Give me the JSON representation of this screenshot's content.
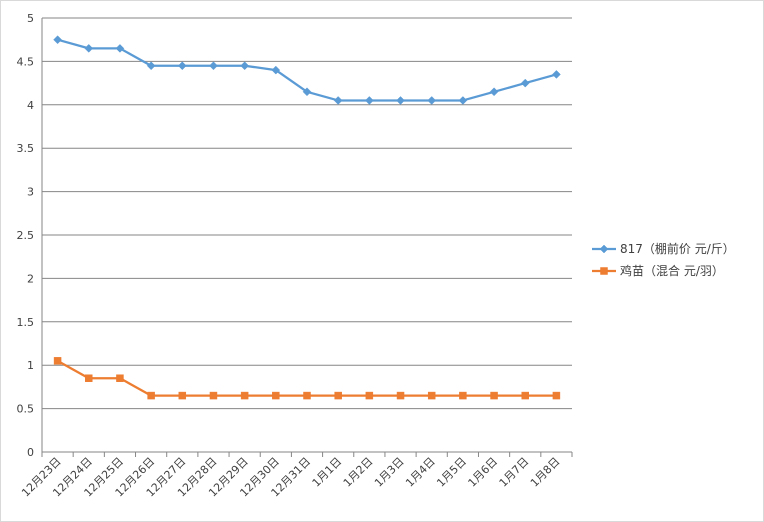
{
  "chart_data": {
    "type": "line",
    "title": "",
    "xlabel": "",
    "ylabel": "",
    "ylim": [
      0,
      5
    ],
    "yticks": [
      "0",
      "0.5",
      "1",
      "1.5",
      "2",
      "2.5",
      "3",
      "3.5",
      "4",
      "4.5",
      "5"
    ],
    "grid": true,
    "legend_position": "right",
    "categories": [
      "12月23日",
      "12月24日",
      "12月25日",
      "12月26日",
      "12月27日",
      "12月28日",
      "12月29日",
      "12月30日",
      "12月31日",
      "1月1日",
      "1月2日",
      "1月3日",
      "1月4日",
      "1月5日",
      "1月6日",
      "1月7日",
      "1月8日"
    ],
    "series": [
      {
        "name": "817（棚前价 元/斤）",
        "color": "#5b9bd5",
        "marker": "diamond",
        "values": [
          4.75,
          4.65,
          4.65,
          4.45,
          4.45,
          4.45,
          4.45,
          4.4,
          4.15,
          4.05,
          4.05,
          4.05,
          4.05,
          4.05,
          4.15,
          4.25,
          4.35
        ]
      },
      {
        "name": "鸡苗（混合 元/羽）",
        "color": "#ed7d31",
        "marker": "square",
        "values": [
          1.05,
          0.85,
          0.85,
          0.65,
          0.65,
          0.65,
          0.65,
          0.65,
          0.65,
          0.65,
          0.65,
          0.65,
          0.65,
          0.65,
          0.65,
          0.65,
          0.65
        ]
      }
    ]
  }
}
